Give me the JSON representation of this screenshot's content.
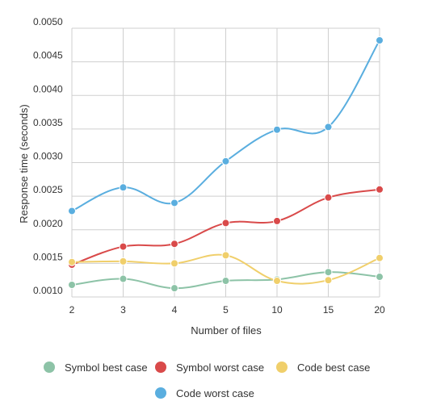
{
  "chart_data": {
    "type": "line",
    "title": "",
    "xlabel": "Number of files",
    "ylabel": "Response time (seconds)",
    "categories": [
      "2",
      "3",
      "4",
      "5",
      "10",
      "15",
      "20"
    ],
    "ylim": [
      0.001,
      0.005
    ],
    "yticks": [
      "0.0010",
      "0.0015",
      "0.0020",
      "0.0025",
      "0.0030",
      "0.0035",
      "0.0040",
      "0.0045",
      "0.0050"
    ],
    "grid": true,
    "legend": "bottom",
    "series": [
      {
        "name": "Symbol best case",
        "color": "#8dc3a7",
        "values": [
          0.00118,
          0.00127,
          0.00113,
          0.00124,
          0.00126,
          0.00137,
          0.0013
        ]
      },
      {
        "name": "Symbol worst case",
        "color": "#d94a4a",
        "values": [
          0.00148,
          0.00175,
          0.00179,
          0.0021,
          0.00213,
          0.00248,
          0.0026
        ]
      },
      {
        "name": "Code best case",
        "color": "#f0cf6b",
        "values": [
          0.00152,
          0.00153,
          0.0015,
          0.00162,
          0.00124,
          0.00125,
          0.00158
        ]
      },
      {
        "name": "Code worst case",
        "color": "#5aaedf",
        "values": [
          0.00228,
          0.00263,
          0.0024,
          0.00302,
          0.00349,
          0.00353,
          0.00482
        ]
      }
    ]
  }
}
